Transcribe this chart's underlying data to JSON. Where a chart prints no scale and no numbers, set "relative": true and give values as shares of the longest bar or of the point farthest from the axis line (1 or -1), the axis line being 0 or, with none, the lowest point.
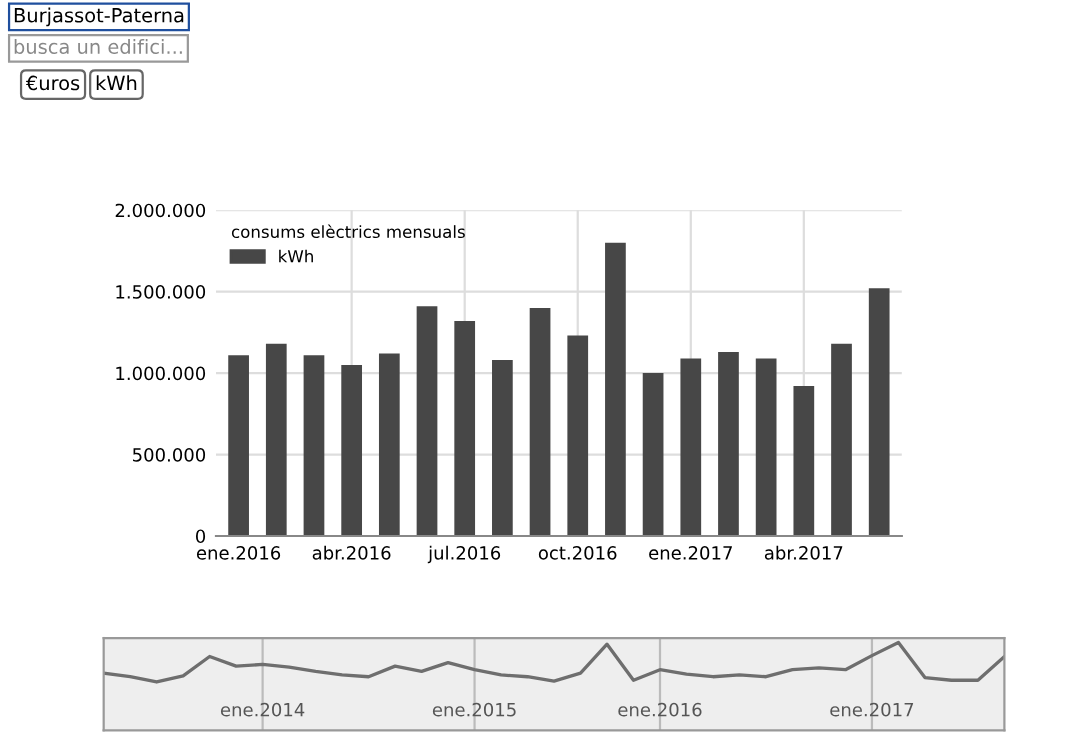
{
  "chart_data": [
    {
      "type": "other",
      "annotations": [
        "Burjassot-Paterna",
        "busca un edifici...",
        "€uros",
        "kWh"
      ]
    },
    {
      "type": "bar",
      "legend_title": "consums elèctrics mensuals",
      "legend": "top left",
      "grid": true,
      "categories": [
        "ene.2016",
        null,
        null,
        "abr.2016",
        null,
        null,
        "jul.2016",
        null,
        null,
        "oct.2016",
        null,
        null,
        "ene.2017",
        null,
        null,
        "abr.2017",
        null,
        null
      ],
      "series": [
        {
          "name": "kWh",
          "color": "#474747",
          "values": [
            1110000,
            1180000,
            1110000,
            1050000,
            1120000,
            1410000,
            1320000,
            1080000,
            1400000,
            1230000,
            1800000,
            1000000,
            1090000,
            1130000,
            1090000,
            920000,
            1180000,
            1520000
          ]
        }
      ],
      "ylim": [
        0,
        2000000
      ],
      "yticks": [
        0,
        {
          "value": 500000,
          "label": "500.000"
        },
        {
          "value": 1000000,
          "label": "1.000.000"
        },
        {
          "value": 1500000,
          "label": "1.500.000"
        },
        {
          "value": 2000000,
          "label": "2.000.000"
        }
      ]
    },
    {
      "type": "line",
      "relative": true,
      "grid": "x",
      "categories": [
        null,
        null,
        null,
        null,
        null,
        null,
        "ene.2014",
        null,
        null,
        null,
        null,
        null,
        null,
        null,
        "ene.2015",
        null,
        null,
        null,
        null,
        null,
        null,
        "ene.2016",
        null,
        null,
        null,
        null,
        null,
        null,
        null,
        "ene.2017",
        null,
        null,
        null,
        null,
        null
      ],
      "series": [
        {
          "color": "#6e6e6e",
          "values": [
            0.65,
            0.61,
            0.55,
            0.62,
            0.84,
            0.73,
            0.75,
            0.72,
            0.67,
            0.63,
            0.61,
            0.73,
            0.67,
            0.77,
            0.69,
            0.63,
            0.61,
            0.56,
            0.65,
            0.98,
            0.57,
            0.69,
            0.64,
            0.61,
            0.63,
            0.61,
            0.69,
            0.71,
            0.69,
            0.85,
            1,
            0.6,
            0.57,
            0.57,
            0.84
          ]
        }
      ]
    }
  ]
}
